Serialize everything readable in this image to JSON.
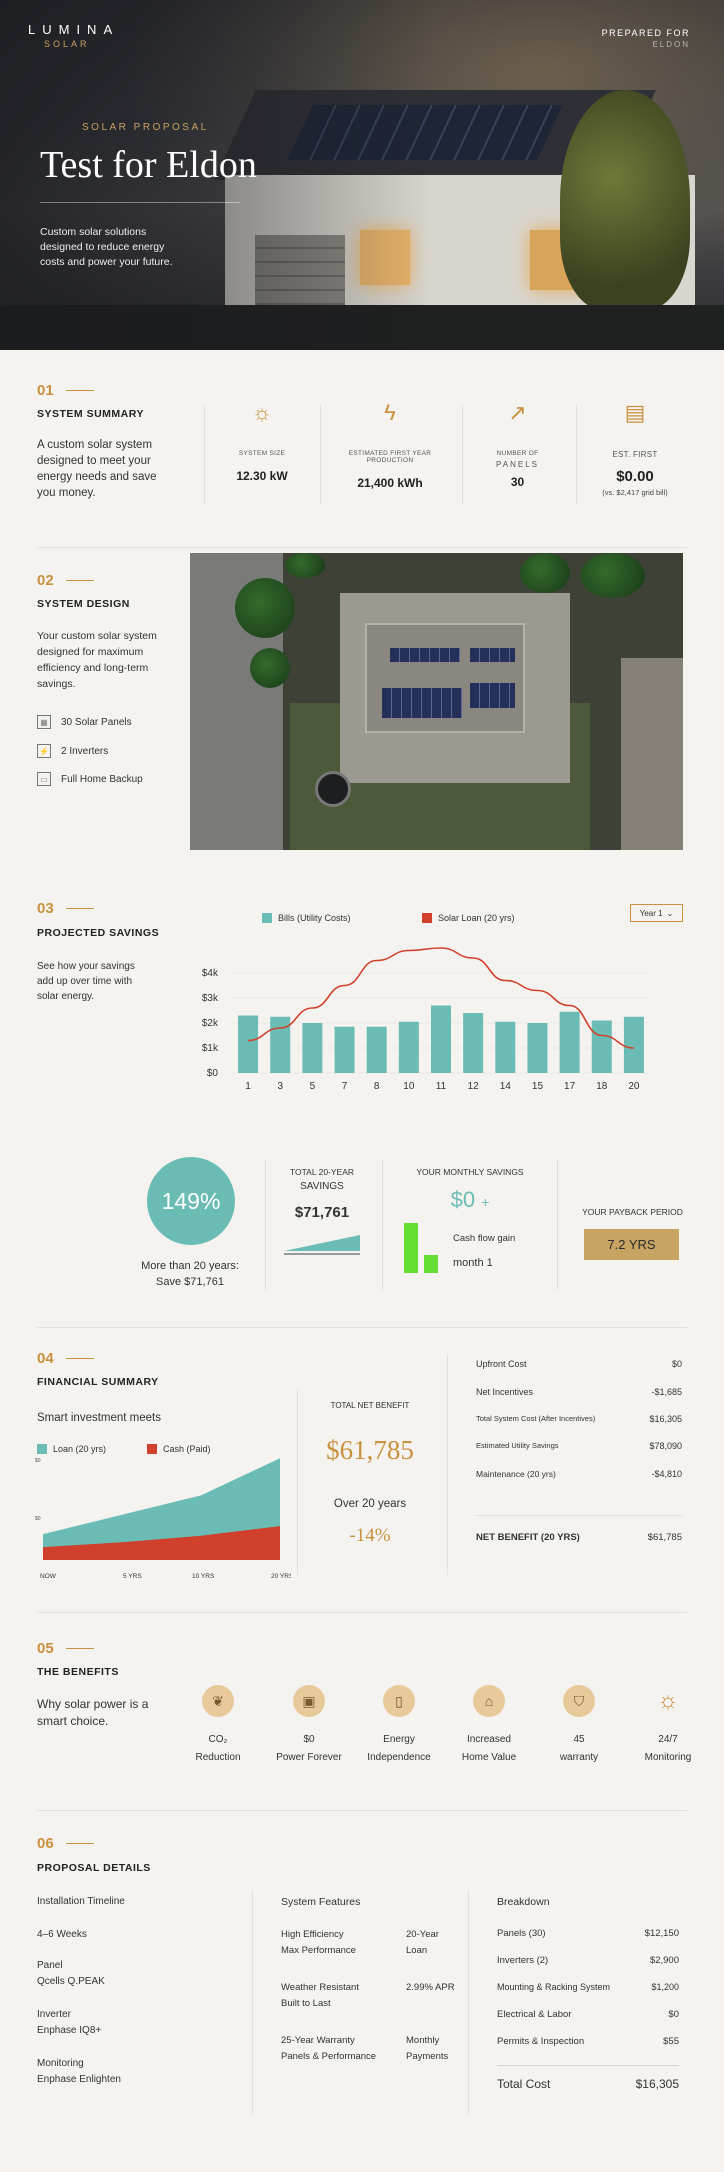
{
  "brand": {
    "name": "LUMINA",
    "sub": "SOLAR"
  },
  "prepared": {
    "label": "PREPARED FOR",
    "name": "ELDON"
  },
  "hero": {
    "eyebrow": "SOLAR PROPOSAL",
    "title": "Test for Eldon",
    "subtitle": "Custom solar solutions designed to reduce energy costs and power your future."
  },
  "summary": {
    "num": "01",
    "title": "SYSTEM SUMMARY",
    "lead": "A custom solar system designed to meet your energy needs and save you money.",
    "stats": [
      {
        "icon": "sun-icon",
        "label": "SYSTEM SIZE",
        "value": "12.30 kW"
      },
      {
        "icon": "bolt-icon",
        "label": "ESTIMATED FIRST YEAR PRODUCTION",
        "value": "21,400 kWh"
      },
      {
        "icon": "growth-icon",
        "label": "NUMBER OF",
        "label2": "PANELS",
        "value": "30"
      },
      {
        "icon": "document-icon",
        "label": "EST. FIRST",
        "value": "$0.00",
        "note": "(vs. $2,417 grid bill)"
      }
    ]
  },
  "design": {
    "num": "02",
    "title": "SYSTEM DESIGN",
    "lead": "Your custom solar system designed for maximum efficiency and long-term savings.",
    "features": [
      {
        "icon": "panel-icon",
        "label": "30 Solar Panels"
      },
      {
        "icon": "inverter-icon",
        "label": "2 Inverters"
      },
      {
        "icon": "battery-icon",
        "label": "Full Home Backup"
      }
    ]
  },
  "savings": {
    "num": "03",
    "title": "PROJECTED SAVINGS",
    "lead": "See how your savings add up over time with solar energy.",
    "select": "Year 1",
    "stats": {
      "percent": "149%",
      "percent_caption": "More than 20 years:",
      "percent_caption2": "Save $71,761",
      "total_label": "TOTAL 20-YEAR",
      "total_label2": "SAVINGS",
      "total_value": "$71,761",
      "monthly_label": "YOUR MONTHLY SAVINGS",
      "monthly_value": "$0",
      "monthly_plus": "+",
      "cashflow_label": "Cash flow gain",
      "cashflow_sub": "month 1",
      "payback_label": "YOUR PAYBACK PERIOD",
      "payback_value": "7.2 YRS"
    }
  },
  "chart_data": [
    {
      "type": "bar",
      "categories": [
        "1",
        "3",
        "5",
        "7",
        "8",
        "10",
        "11",
        "12",
        "14",
        "15",
        "17",
        "18",
        "20"
      ],
      "series": [
        {
          "name": "Bills (Utility Costs)",
          "type": "bar",
          "color": "#6bbcb5",
          "values": [
            2300,
            2250,
            2000,
            1850,
            1850,
            2050,
            2700,
            2400,
            2050,
            2000,
            2450,
            2100,
            2250
          ]
        },
        {
          "name": "Solar Loan (20 yrs)",
          "type": "line",
          "color": "#d0402c",
          "values": [
            1300,
            1800,
            2600,
            3500,
            4500,
            4900,
            5000,
            4600,
            3700,
            3300,
            2700,
            1500,
            1000
          ]
        }
      ],
      "yticks": [
        "$0",
        "$1k",
        "$2k",
        "$3k",
        "$4k"
      ],
      "ylim": [
        0,
        5000
      ]
    },
    {
      "type": "area",
      "categories": [
        "NOW",
        "5 YRS",
        "10 YRS",
        "20 YRS"
      ],
      "series": [
        {
          "name": "Loan (20 yrs)",
          "color": "#6bbcb5",
          "values": [
            16,
            28,
            40,
            63
          ]
        },
        {
          "name": "Cash (Paid)",
          "color": "#d0402c",
          "values": [
            8,
            11,
            15,
            21
          ]
        }
      ],
      "yticks": [
        "$0",
        "$0"
      ]
    }
  ],
  "financial": {
    "num": "04",
    "title": "FINANCIAL SUMMARY",
    "lead": "Smart investment meets",
    "net_label": "TOTAL NET BENEFIT",
    "net_value": "$61,785",
    "over_label": "Over 20 years",
    "over_value": "-14%",
    "rows": [
      {
        "label": "Upfront Cost",
        "value": "$0"
      },
      {
        "label": "Net Incentives",
        "value": "-$1,685"
      },
      {
        "label": "Total System Cost (After Incentives)",
        "value": "$16,305"
      },
      {
        "label": "Estimated Utility Savings",
        "value": "$78,090"
      },
      {
        "label": "Maintenance (20 yrs)",
        "value": "-$4,810"
      }
    ],
    "total": {
      "label": "NET BENEFIT (20 YRS)",
      "value": "$61,785"
    }
  },
  "benefits": {
    "num": "05",
    "title": "THE BENEFITS",
    "lead": "Why solar power is a smart choice.",
    "items": [
      {
        "icon": "leaf-icon",
        "l1": "CO₂",
        "l2": "Reduction"
      },
      {
        "icon": "meter-icon",
        "l1": "$0",
        "l2": "Power Forever"
      },
      {
        "icon": "battery-icon",
        "l1": "Energy",
        "l2": "Independence"
      },
      {
        "icon": "house-icon",
        "l1": "Increased",
        "l2": "Home Value"
      },
      {
        "icon": "shield-icon",
        "l1": "45",
        "l2": "warranty"
      },
      {
        "icon": "sun-icon",
        "l1": "24/7",
        "l2": "Monitoring"
      }
    ]
  },
  "details": {
    "num": "06",
    "title": "PROPOSAL DETAILS",
    "left": [
      {
        "k": "Installation Timeline",
        "v": ""
      },
      {
        "k": "4–6 Weeks",
        "v": ""
      },
      {
        "k": "Panel",
        "v": "Qcells Q.PEAK"
      },
      {
        "k": "Inverter",
        "v": "Enphase IQ8+"
      },
      {
        "k": "Monitoring",
        "v": "Enphase Enlighten"
      }
    ],
    "features_title": "System Features",
    "features": [
      {
        "a": "High Efficiency",
        "a2": "Max Performance",
        "b": "20-Year",
        "b2": "Loan"
      },
      {
        "a": "Weather Resistant",
        "a2": "Built to Last",
        "b": "2.99% APR",
        "b2": ""
      },
      {
        "a": "25-Year Warranty",
        "a2": "Panels & Performance",
        "b": "Monthly",
        "b2": "Payments"
      }
    ],
    "breakdown_title": "Breakdown",
    "breakdown": [
      {
        "label": "Panels (30)",
        "value": "$12,150"
      },
      {
        "label": "Inverters (2)",
        "value": "$2,900"
      },
      {
        "label": "Mounting & Racking System",
        "value": "$1,200"
      },
      {
        "label": "Electrical & Labor",
        "value": "$0"
      },
      {
        "label": "Permits & Inspection",
        "value": "$55"
      }
    ],
    "total": {
      "label": "Total Cost",
      "value": "$16,305"
    }
  }
}
